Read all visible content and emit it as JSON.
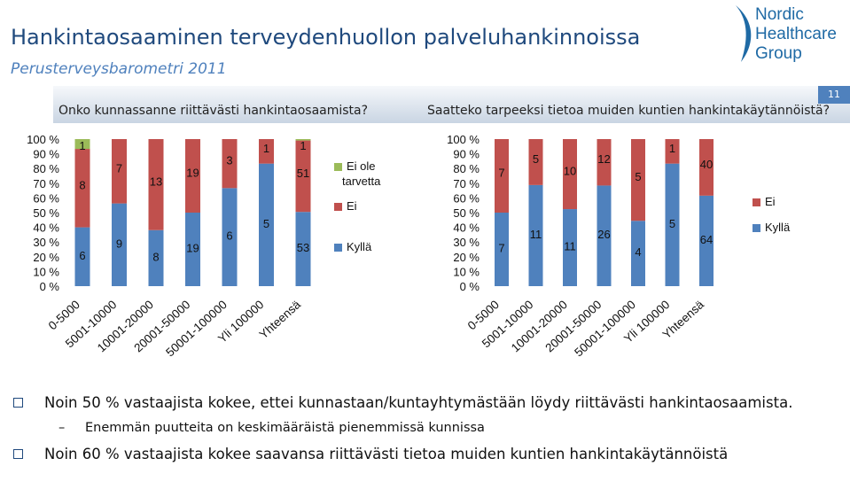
{
  "header": {
    "title": "Hankintaosaaminen terveydenhuollon palveluhankinnoissa",
    "subtitle": "Perusterveysbarometri 2011",
    "logo_lines": [
      "Nordic",
      "Healthcare",
      "Group"
    ],
    "page_number": "11"
  },
  "colors": {
    "ei_ole_tarvetta": "#9bbb59",
    "ei": "#c0504d",
    "kylla": "#4f81bd"
  },
  "chart_data": [
    {
      "type": "bar",
      "stacked": "percent",
      "title": "Onko kunnassanne riittävästi hankintaosaamista?",
      "categories": [
        "0-5000",
        "5001-10000",
        "10001-20000",
        "20001-50000",
        "50001-100000",
        "Yli 100000",
        "Yhteensä"
      ],
      "yticks": [
        "100 %",
        "90 %",
        "80 %",
        "70 %",
        "60 %",
        "50 %",
        "40 %",
        "30 %",
        "20 %",
        "10 %",
        "0 %"
      ],
      "ylim": [
        0,
        100
      ],
      "series": [
        {
          "name": "Kyllä",
          "values": [
            6,
            9,
            8,
            19,
            6,
            5,
            53
          ],
          "labels": [
            "6",
            "9",
            "8",
            "19",
            "6",
            "5",
            "53"
          ]
        },
        {
          "name": "Ei",
          "values": [
            8,
            7,
            13,
            19,
            3,
            1,
            51
          ],
          "labels": [
            "8",
            "7",
            "13",
            "19",
            "3",
            "1",
            "51"
          ]
        },
        {
          "name": "Ei ole tarvetta",
          "values": [
            1,
            0,
            0,
            0,
            0,
            0,
            1
          ],
          "labels": [
            "1",
            "",
            "",
            "",
            "",
            "",
            "1"
          ]
        }
      ],
      "legend": [
        "Ei ole tarvetta",
        "Ei",
        "Kyllä"
      ]
    },
    {
      "type": "bar",
      "stacked": "percent",
      "title": "Saatteko tarpeeksi tietoa muiden kuntien hankintakäytännöistä?",
      "categories": [
        "0-5000",
        "5001-10000",
        "10001-20000",
        "20001-50000",
        "50001-100000",
        "Yli 100000",
        "Yhteensä"
      ],
      "yticks": [
        "100 %",
        "90 %",
        "80 %",
        "70 %",
        "60 %",
        "50 %",
        "40 %",
        "30 %",
        "20 %",
        "10 %",
        "0 %"
      ],
      "ylim": [
        0,
        100
      ],
      "series": [
        {
          "name": "Kyllä",
          "values": [
            7,
            11,
            11,
            26,
            4,
            5,
            64
          ],
          "labels": [
            "7",
            "11",
            "11",
            "26",
            "4",
            "5",
            "64"
          ]
        },
        {
          "name": "Ei",
          "values": [
            7,
            5,
            10,
            12,
            5,
            1,
            40
          ],
          "labels": [
            "7",
            "5",
            "10",
            "12",
            "5",
            "1",
            "40"
          ]
        }
      ],
      "legend": [
        "Ei",
        "Kyllä"
      ]
    }
  ],
  "bullets": [
    {
      "text": "Noin 50 % vastaajista kokee, ettei kunnastaan/kuntayhtymästään löydy riittävästi hankintaosaamista.",
      "sub": "Enemmän puutteita on keskimääräistä pienemmissä kunnissa"
    },
    {
      "text": "Noin 60 % vastaajista kokee saavansa riittävästi tietoa muiden kuntien hankintakäytännöistä"
    }
  ],
  "sub_dash": "–"
}
